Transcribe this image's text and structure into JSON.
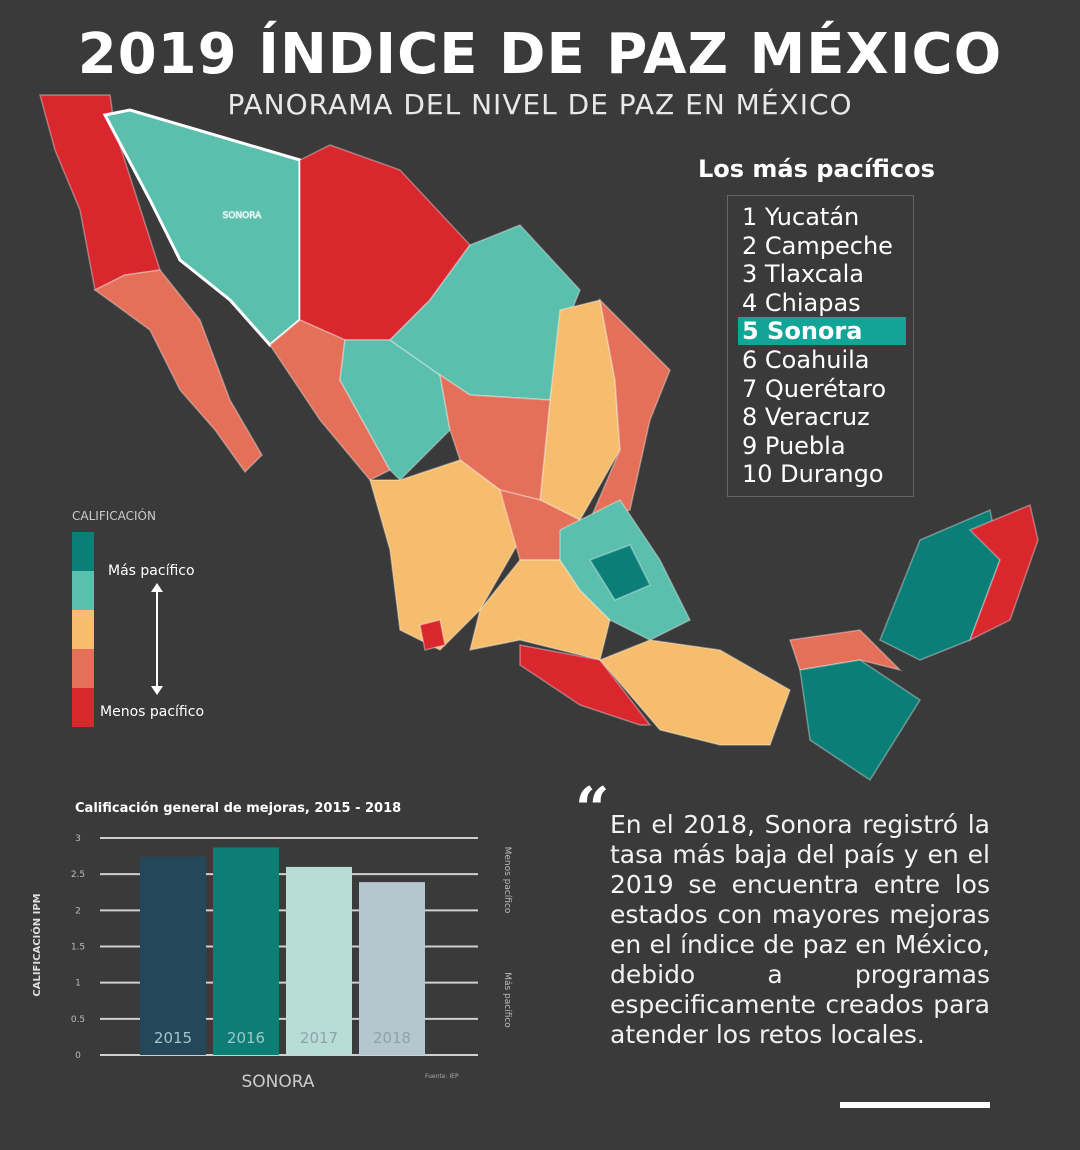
{
  "header": {
    "title": "2019  ÍNDICE DE PAZ MÉXICO",
    "subtitle": "PANORAMA DEL NIVEL DE PAZ EN MÉXICO"
  },
  "map": {
    "state_label": "SONORA"
  },
  "ranking": {
    "title": "Los más pacíficos",
    "highlight": 4,
    "items": [
      "1 Yucatán",
      "2 Campeche",
      "3 Tlaxcala",
      "4 Chiapas",
      "5 Sonora",
      "6 Coahuila",
      "7 Querétaro",
      "8 Veracruz",
      "9 Puebla",
      "10 Durango"
    ]
  },
  "legend": {
    "title": "CALIFICACIÓN",
    "top": "Más pacífico",
    "bottom": "Menos pacífico",
    "colors": [
      "#0b7f77",
      "#5bbfae",
      "#f6bd6e",
      "#e5705a",
      "#d9272e"
    ]
  },
  "chart_data": {
    "type": "bar",
    "title": "Calificación general de mejoras, 2015 - 2018",
    "categories": [
      "2015",
      "2016",
      "2017",
      "2018"
    ],
    "values": [
      2.74,
      2.87,
      2.6,
      2.39
    ],
    "colors": [
      "#24475a",
      "#0e7d75",
      "#b7ddd6",
      "#b6c6cf"
    ],
    "ylim": [
      0,
      3
    ],
    "yticks": [
      0,
      0.5,
      1,
      1.5,
      2,
      2.5,
      3
    ],
    "grid": true,
    "y_label": "CALIFICACIÓN IPM",
    "x_label": "SONORA",
    "y2_top": "Menos pacífico",
    "y2_bottom": "Más pacífico",
    "source": "Fuente: IEP"
  },
  "quote": {
    "mark": "“",
    "text": "En el 2018, Sonora registró la tasa más baja del país y en el 2019 se encuentra entre los estados con mayores mejoras en el índice de paz en México, debido a programas especificamente creados para atender los retos locales."
  }
}
